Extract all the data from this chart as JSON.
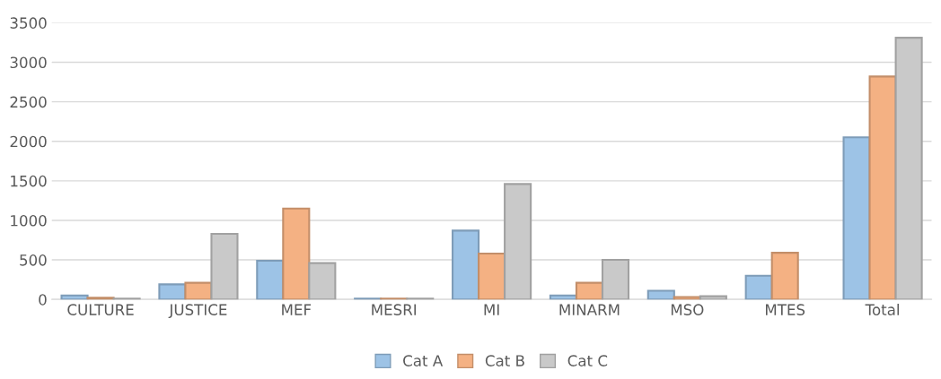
{
  "chart_data": {
    "type": "bar",
    "categories": [
      "CULTURE",
      "JUSTICE",
      "MEF",
      "MESRI",
      "MI",
      "MINARM",
      "MSO",
      "MTES",
      "Total"
    ],
    "series": [
      {
        "name": "Cat A",
        "color": "#9dc3e6",
        "values": [
          50,
          190,
          490,
          10,
          870,
          50,
          110,
          300,
          2050
        ]
      },
      {
        "name": "Cat B",
        "color": "#f4b183",
        "values": [
          20,
          210,
          1150,
          10,
          580,
          210,
          30,
          590,
          2820
        ]
      },
      {
        "name": "Cat C",
        "color": "#c9c9c9",
        "values": [
          10,
          830,
          460,
          10,
          1460,
          500,
          40,
          null,
          3310
        ]
      }
    ],
    "ylim": [
      0,
      3500
    ],
    "yticks": [
      0,
      500,
      1000,
      1500,
      2000,
      2500,
      3000,
      3500
    ],
    "grid": "y",
    "legend": "bottom"
  }
}
